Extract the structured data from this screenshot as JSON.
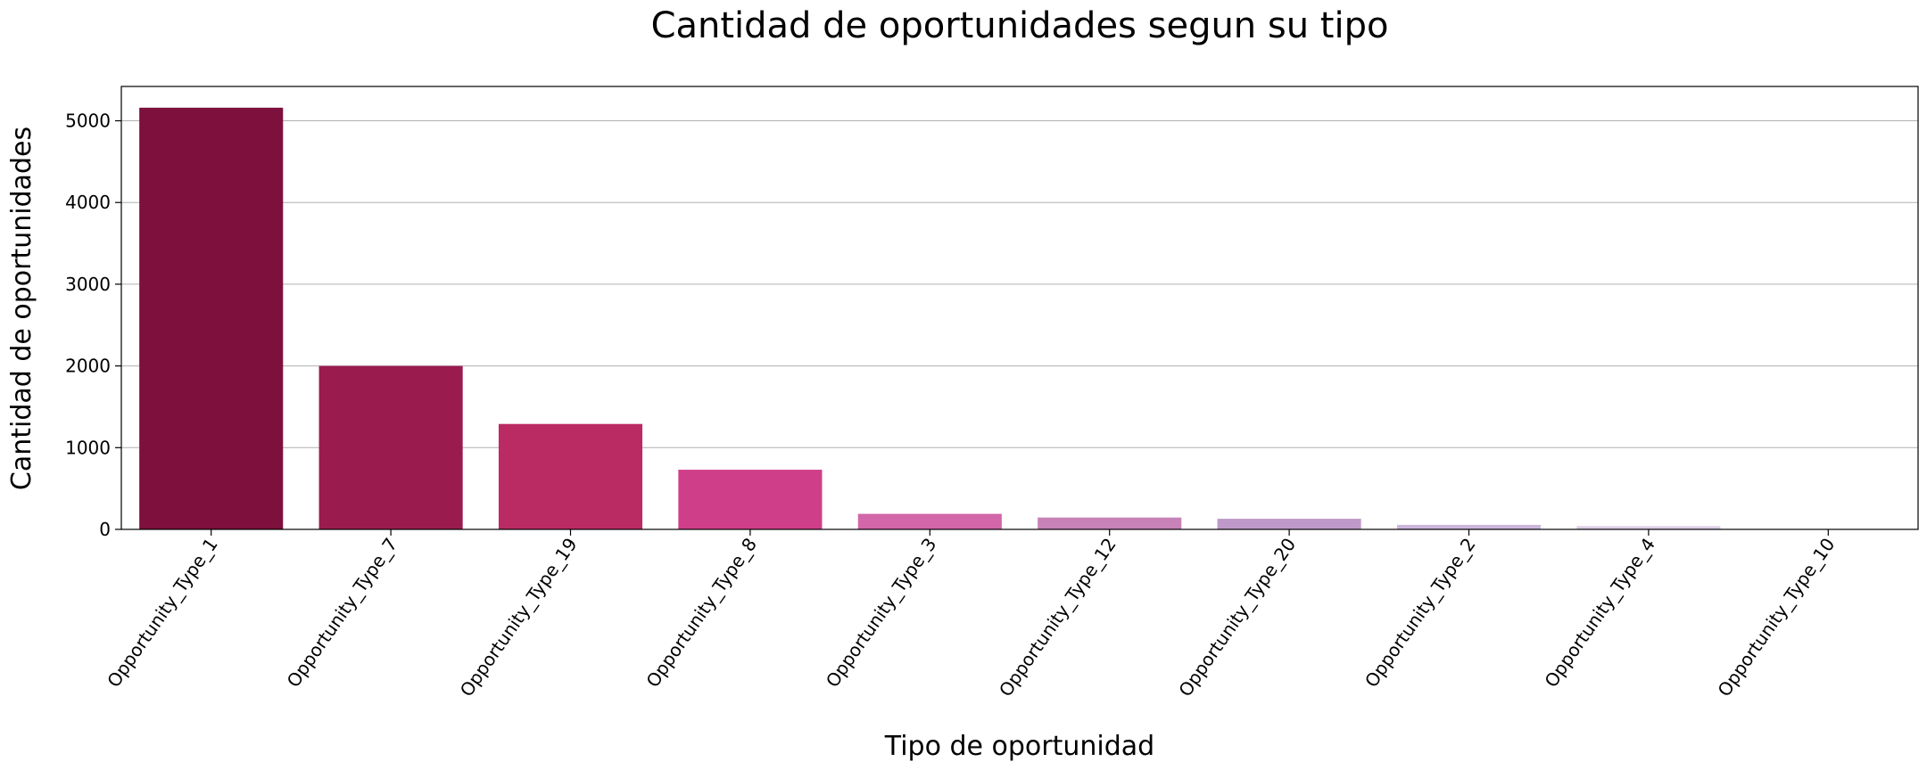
{
  "chart_data": {
    "type": "bar",
    "title": "Cantidad de oportunidades segun su tipo",
    "xlabel": "Tipo de oportunidad",
    "ylabel": "Cantidad de oportunidades",
    "categories": [
      "Opportunity_Type_1",
      "Opportunity_Type_7",
      "Opportunity_Type_19",
      "Opportunity_Type_8",
      "Opportunity_Type_3",
      "Opportunity_Type_12",
      "Opportunity_Type_20",
      "Opportunity_Type_2",
      "Opportunity_Type_4",
      "Opportunity_Type_10"
    ],
    "values": [
      5160,
      2000,
      1290,
      730,
      190,
      145,
      130,
      55,
      40,
      5
    ],
    "colors": [
      "#7d103d",
      "#9a1c4f",
      "#bb2b63",
      "#cf3f89",
      "#d266a8",
      "#c882b8",
      "#bf9ac9",
      "#cdb6db",
      "#ddcde6",
      "#ece6f2"
    ],
    "yticks": [
      0,
      1000,
      2000,
      3000,
      4000,
      5000
    ],
    "ylim": [
      0,
      5420
    ],
    "grid": "y"
  }
}
